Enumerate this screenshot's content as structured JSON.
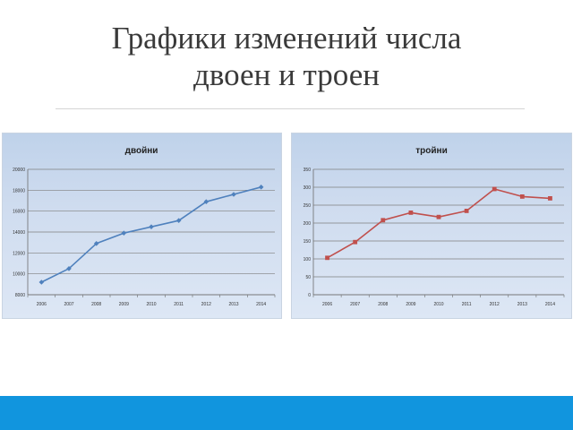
{
  "slide": {
    "title_line1": "Графики изменений числа",
    "title_line2": "двоен и троен",
    "accent_color": "#1195de"
  },
  "chart_data": [
    {
      "type": "line",
      "title": "двойни",
      "x": [
        "2006",
        "2007",
        "2008",
        "2009",
        "2010",
        "2011",
        "2012",
        "2013",
        "2014"
      ],
      "series": [
        {
          "values": [
            9200,
            10500,
            12900,
            13900,
            14500,
            15100,
            16900,
            17600,
            18300
          ],
          "color": "#4f81bd",
          "marker": "diamond"
        }
      ],
      "ylim": [
        8000,
        20000
      ],
      "yticks": [
        8000,
        10000,
        12000,
        14000,
        16000,
        18000,
        20000
      ],
      "ytick_labels": [
        "8000",
        "10000",
        "12000",
        "14000",
        "16000",
        "18000",
        "20000"
      ],
      "grid": true,
      "legend": "none"
    },
    {
      "type": "line",
      "title": "тройни",
      "x": [
        "2006",
        "2007",
        "2008",
        "2009",
        "2010",
        "2011",
        "2012",
        "2013",
        "2014"
      ],
      "series": [
        {
          "values": [
            103,
            147,
            208,
            229,
            217,
            234,
            295,
            274,
            269
          ],
          "color": "#c0504d",
          "marker": "square"
        }
      ],
      "ylim": [
        0,
        350
      ],
      "yticks": [
        0,
        50,
        100,
        150,
        200,
        250,
        300,
        350
      ],
      "ytick_labels": [
        "0",
        "50",
        "100",
        "150",
        "200",
        "250",
        "300",
        "350"
      ],
      "grid": true,
      "legend": "none"
    }
  ]
}
